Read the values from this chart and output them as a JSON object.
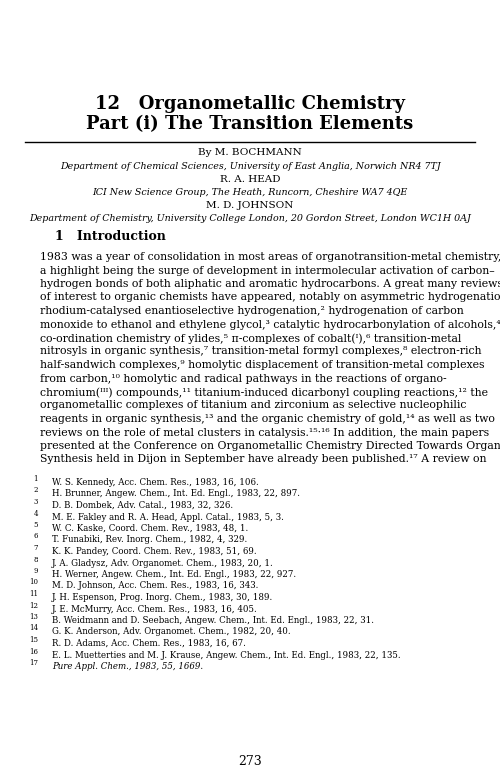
{
  "bg_color": "#ffffff",
  "title_line1": "12   Organometallic Chemistry",
  "title_line2": "Part (i) The Transition Elements",
  "authors": [
    {
      "name": "By M. BOCHMANN",
      "style": "normal",
      "size": 7.5
    },
    {
      "name": "Department of Chemical Sciences, University of East Anglia, Norwich NR4 7TJ",
      "style": "italic",
      "size": 6.8
    },
    {
      "name": "R. A. HEAD",
      "style": "normal",
      "size": 7.5
    },
    {
      "name": "ICI New Science Group, The Heath, Runcorn, Cheshire WA7 4QE",
      "style": "italic",
      "size": 6.8
    },
    {
      "name": "M. D. JOHNSON",
      "style": "normal",
      "size": 7.5
    },
    {
      "name": "Department of Chemistry, University College London, 20 Gordon Street, London WC1H 0AJ",
      "style": "italic",
      "size": 6.8
    }
  ],
  "section_heading": "1   Introduction",
  "footnotes": [
    {
      "num": "1",
      "text": "W. S. Kennedy, Acc. Chem. Res., 1983, 16, 106.",
      "italic_parts": [
        "Acc. Chem. Res.,"
      ]
    },
    {
      "num": "2",
      "text": "H. Brunner, Angew. Chem., Int. Ed. Engl., 1983, 22, 897.",
      "italic_parts": [
        "Angew. Chem., Int. Ed. Engl.,"
      ]
    },
    {
      "num": "3",
      "text": "D. B. Dombek, Adv. Catal., 1983, 32, 326.",
      "italic_parts": [
        "Adv. Catal.,"
      ]
    },
    {
      "num": "4",
      "text": "M. E. Fakley and R. A. Head, Appl. Catal., 1983, 5, 3.",
      "italic_parts": [
        "Appl. Catal.,"
      ]
    },
    {
      "num": "5",
      "text": "W. C. Kaske, Coord. Chem. Rev., 1983, 48, 1.",
      "italic_parts": [
        "Coord. Chem. Rev.,"
      ]
    },
    {
      "num": "6",
      "text": "T. Funabiki, Rev. Inorg. Chem., 1982, 4, 329.",
      "italic_parts": [
        "Rev. Inorg. Chem.,"
      ]
    },
    {
      "num": "7",
      "text": "K. K. Pandey, Coord. Chem. Rev., 1983, 51, 69.",
      "italic_parts": [
        "Coord. Chem. Rev.,"
      ]
    },
    {
      "num": "8",
      "text": "J. A. Gladysz, Adv. Organomet. Chem., 1983, 20, 1.",
      "italic_parts": [
        "Adv. Organomet. Chem.,"
      ]
    },
    {
      "num": "9",
      "text": "H. Werner, Angew. Chem., Int. Ed. Engl., 1983, 22, 927.",
      "italic_parts": [
        "Angew. Chem., Int. Ed. Engl.,"
      ]
    },
    {
      "num": "10",
      "text": "M. D. Johnson, Acc. Chem. Res., 1983, 16, 343.",
      "italic_parts": [
        "Acc. Chem. Res.,"
      ]
    },
    {
      "num": "11",
      "text": "J. H. Espenson, Prog. Inorg. Chem., 1983, 30, 189.",
      "italic_parts": [
        "Prog. Inorg. Chem.,"
      ]
    },
    {
      "num": "12",
      "text": "J. E. McMurry, Acc. Chem. Res., 1983, 16, 405.",
      "italic_parts": [
        "Acc. Chem. Res.,"
      ]
    },
    {
      "num": "13",
      "text": "B. Weidmann and D. Seebach, Angew. Chem., Int. Ed. Engl., 1983, 22, 31.",
      "italic_parts": [
        "Angew. Chem., Int. Ed. Engl.,"
      ]
    },
    {
      "num": "14",
      "text": "G. K. Anderson, Adv. Organomet. Chem., 1982, 20, 40.",
      "italic_parts": [
        "Adv. Organomet. Chem.,"
      ]
    },
    {
      "num": "15",
      "text": "R. D. Adams, Acc. Chem. Res., 1983, 16, 67.",
      "italic_parts": [
        "Acc. Chem. Res.,"
      ]
    },
    {
      "num": "16",
      "text": "E. L. Muetterties and M. J. Krause, Angew. Chem., Int. Ed. Engl., 1983, 22, 135.",
      "italic_parts": [
        "Angew. Chem., Int. Ed. Engl.,"
      ]
    },
    {
      "num": "17",
      "text": "Pure Appl. Chem., 1983, 55, 1669.",
      "italic_parts": [
        "Pure Appl. Chem.,"
      ],
      "all_italic": true
    }
  ],
  "page_number": "273",
  "main_text_lines": [
    "1983 was a year of consolidation in most areas of organotransition-metal chemistry,",
    "a highlight being the surge of development in intermolecular activation of carbon–",
    "hydrogen bonds of both aliphatic and aromatic hydrocarbons. A great many reviews",
    "of interest to organic chemists have appeared, notably on asymmetric hydrogenation,¹",
    "rhodium-catalysed enantioselective hydrogenation,² hydrogenation of carbon",
    "monoxide to ethanol and ethylene glycol,³ catalytic hydrocarbonylation of alcohols,⁴",
    "co-ordination chemistry of ylides,⁵ π-complexes of cobalt(ᴵ),⁶ transition-metal",
    "nitrosyls in organic synthesis,⁷ transition-metal formyl complexes,⁸ electron-rich",
    "half-sandwich complexes,⁹ homolytic displacement of transition-metal complexes",
    "from carbon,¹⁰ homolytic and radical pathways in the reactions of organo-",
    "chromium(ᴵᴵᴵ) compounds,¹¹ titanium-induced dicarbonyl coupling reactions,¹² the",
    "organometallic complexes of titanium and zirconium as selective nucleophilic",
    "reagents in organic synthesis,¹³ and the organic chemistry of gold,¹⁴ as well as two",
    "reviews on the role of metal clusters in catalysis.¹⁵·¹⁶ In addition, the main papers",
    "presented at the Conference on Organometallic Chemistry Directed Towards Organic",
    "Synthesis held in Dijon in September have already been published.¹⁷ A review on"
  ]
}
